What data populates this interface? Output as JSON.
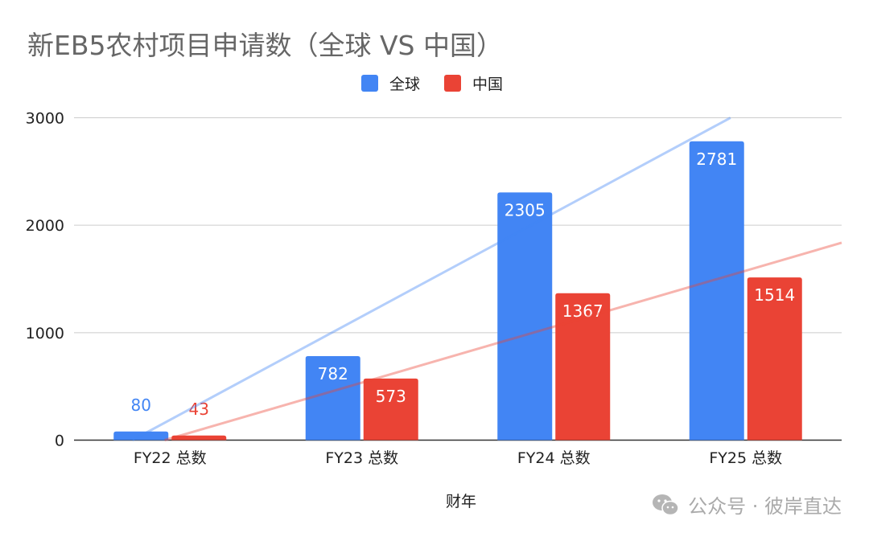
{
  "title": "新EB5农村项目申请数（全球 VS 中国）",
  "legend": [
    {
      "label": "全球",
      "color": "#4285f4"
    },
    {
      "label": "中国",
      "color": "#ea4335"
    }
  ],
  "watermark": {
    "icon": "wechat-icon",
    "text": "公众号 · 彼岸直达"
  },
  "chart_data": {
    "type": "bar",
    "title": "新EB5农村项目申请数（全球 VS 中国）",
    "xlabel": "财年",
    "ylabel": "",
    "categories": [
      "FY22 总数",
      "FY23 总数",
      "FY24 总数",
      "FY25 总数"
    ],
    "series": [
      {
        "name": "全球",
        "color": "#4285f4",
        "values": [
          80,
          782,
          2305,
          2781
        ]
      },
      {
        "name": "中国",
        "color": "#ea4335",
        "values": [
          43,
          573,
          1367,
          1514
        ]
      }
    ],
    "trendlines": [
      {
        "series": "全球",
        "color": "#4285f4",
        "type": "linear"
      },
      {
        "series": "中国",
        "color": "#ea4335",
        "type": "linear"
      }
    ],
    "yticks": [
      0,
      1000,
      2000,
      3000
    ],
    "ylim": [
      0,
      3000
    ],
    "grid": true,
    "legend_position": "top"
  }
}
